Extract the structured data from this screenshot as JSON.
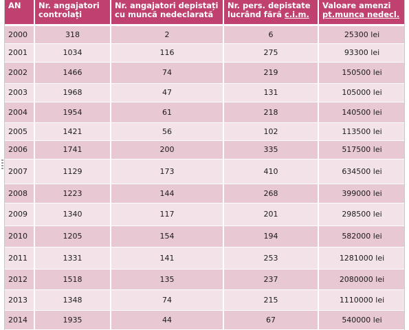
{
  "table": {
    "headers": [
      {
        "line1": "AN",
        "line2": ""
      },
      {
        "line1": "Nr. angajatori",
        "line2": "controlați"
      },
      {
        "line1": "Nr. angajatori depistați",
        "line2": "cu muncă nedeclarată"
      },
      {
        "line1": "Nr. pers. depistate",
        "line2": "lucrând fără ",
        "line2_underlined": "c.i.m."
      },
      {
        "line1": "Valoare amenzi",
        "line2": "",
        "line2_underlined": "pt.munca nedecl."
      }
    ],
    "rows": [
      {
        "year": "2000",
        "employers_checked": "318",
        "employers_found": "2",
        "persons_found": "6",
        "fines": "25300 lei"
      },
      {
        "year": "2001",
        "employers_checked": "1034",
        "employers_found": "116",
        "persons_found": "275",
        "fines": "93300 lei"
      },
      {
        "year": "2002",
        "employers_checked": "1466",
        "employers_found": "74",
        "persons_found": "219",
        "fines": "150500 lei"
      },
      {
        "year": "2003",
        "employers_checked": "1968",
        "employers_found": "47",
        "persons_found": "131",
        "fines": "105000 lei"
      },
      {
        "year": "2004",
        "employers_checked": "1954",
        "employers_found": "61",
        "persons_found": "218",
        "fines": "140500 lei"
      },
      {
        "year": "2005",
        "employers_checked": "1421",
        "employers_found": "56",
        "persons_found": "102",
        "fines": "113500 lei"
      },
      {
        "year": "2006",
        "employers_checked": "1741",
        "employers_found": "200",
        "persons_found": "335",
        "fines": "517500 lei"
      },
      {
        "year": "2007",
        "employers_checked": "1129",
        "employers_found": "173",
        "persons_found": "410",
        "fines": "634500 lei"
      },
      {
        "year": "2008",
        "employers_checked": "1223",
        "employers_found": "144",
        "persons_found": "268",
        "fines": "399000 lei"
      },
      {
        "year": "2009",
        "employers_checked": "1340",
        "employers_found": "117",
        "persons_found": "201",
        "fines": "298500 lei"
      },
      {
        "year": "2010",
        "employers_checked": "1205",
        "employers_found": "154",
        "persons_found": "194",
        "fines": "582000 lei"
      },
      {
        "year": "2011",
        "employers_checked": "1331",
        "employers_found": "141",
        "persons_found": "253",
        "fines": "1281000 lei"
      },
      {
        "year": "2012",
        "employers_checked": "1518",
        "employers_found": "135",
        "persons_found": "237",
        "fines": "2080000 lei"
      },
      {
        "year": "2013",
        "employers_checked": "1348",
        "employers_found": "74",
        "persons_found": "215",
        "fines": "1110000 lei"
      },
      {
        "year": "2014",
        "employers_checked": "1935",
        "employers_found": "44",
        "persons_found": "67",
        "fines": "540000 lei"
      }
    ]
  },
  "colors": {
    "header_bg": "#c0416f",
    "row_odd": "#e8c8d2",
    "row_even": "#f3e3e8"
  }
}
